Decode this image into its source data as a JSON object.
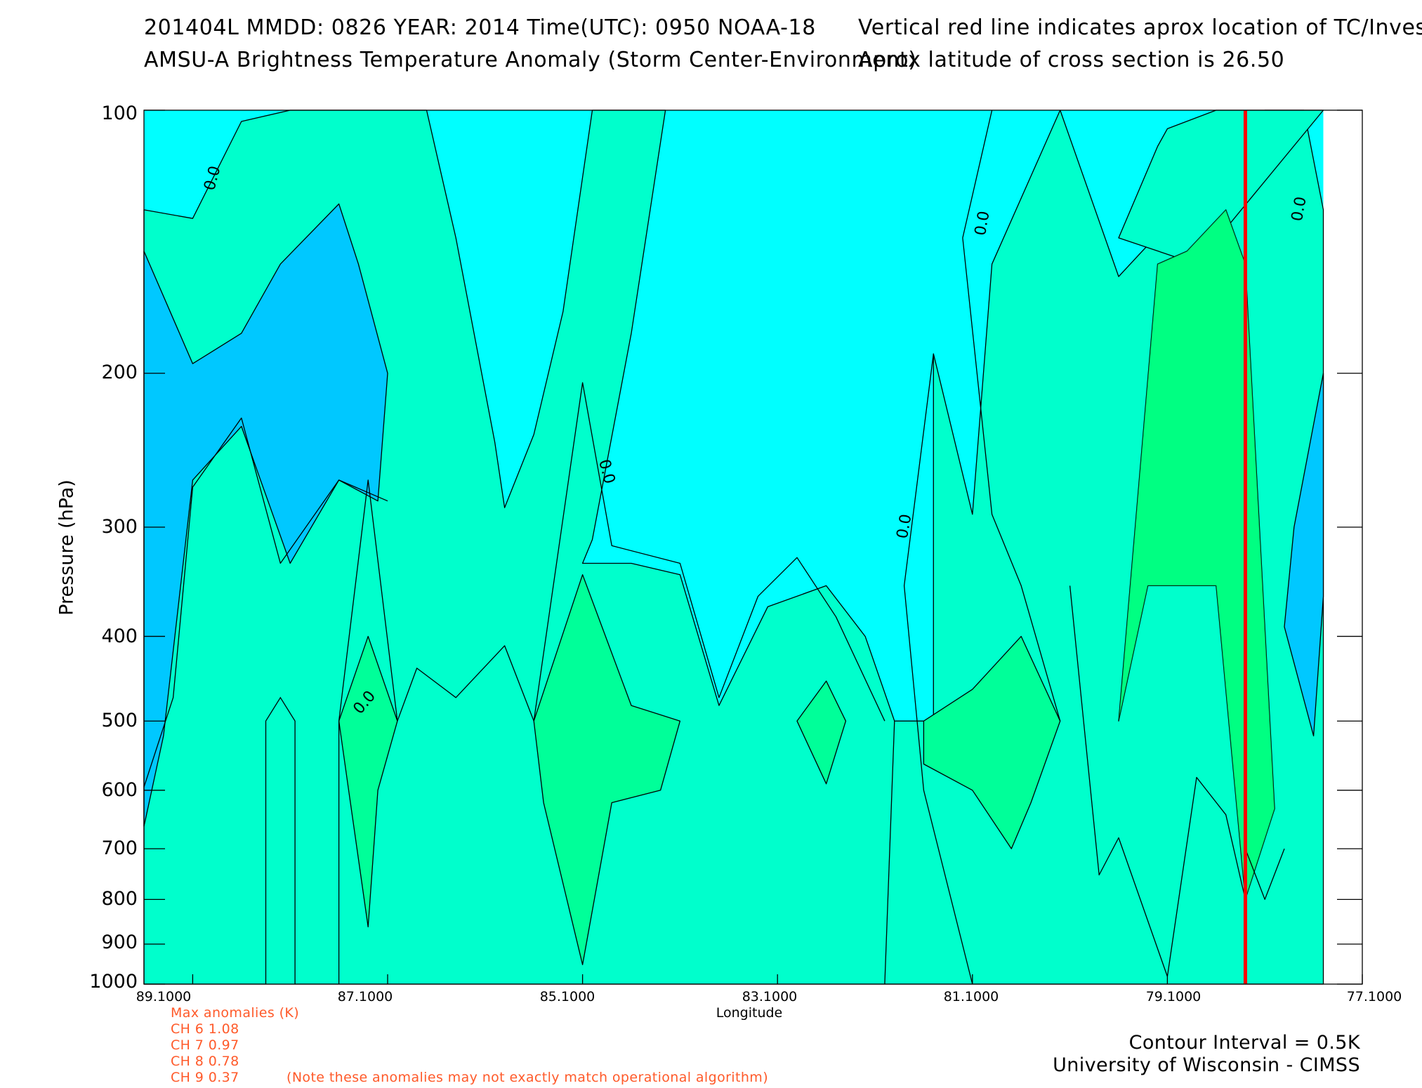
{
  "header": {
    "line1": "201404L  MMDD: 0826 YEAR: 2014 Time(UTC): 0950 NOAA-18",
    "line2": "AMSU-A Brightness Temperature Anomaly (Storm Center-Environment)",
    "note1": "Vertical red line indicates aprox location of TC/Invest",
    "note2": "Aprox latitude of cross section is 26.50"
  },
  "chart_data": {
    "type": "heatmap",
    "subtype": "filled contour cross-section",
    "title": "AMSU-A Brightness Temperature Anomaly (Storm Center-Environment)",
    "xlabel": "Longitude",
    "ylabel": "Pressure (hPa)",
    "x_tick_labels": [
      "89.1000",
      "87.1000",
      "85.1000",
      "83.1000",
      "81.1000",
      "79.1000",
      "77.1000"
    ],
    "x_ticks": [
      89.1,
      87.1,
      85.1,
      83.1,
      81.1,
      79.1,
      77.1
    ],
    "y_tick_labels": [
      "100",
      "200",
      "300",
      "400",
      "500",
      "600",
      "700",
      "800",
      "900",
      "1000"
    ],
    "y_ticks": [
      100,
      200,
      300,
      400,
      500,
      600,
      700,
      800,
      900,
      1000
    ],
    "xlim": [
      89.6,
      77.1
    ],
    "ylim": [
      1000,
      100
    ],
    "y_scale": "log",
    "contour_interval_K": 0.5,
    "contour_label": "0.0",
    "storm_longitude": 78.3,
    "data_extent_lon": [
      89.6,
      77.5
    ],
    "band_colors": {
      "-1.0": "#00c8ff",
      "-0.5": "#00ffff",
      "0.0": "#00ffcc",
      "0.5": "#00ff99",
      "1.0": "#00ff66"
    },
    "regions": [
      {
        "level": 0.0,
        "points": [
          [
            89.6,
            760
          ],
          [
            89.6,
            130
          ],
          [
            89.1,
            133
          ],
          [
            88.6,
            103
          ],
          [
            88.1,
            100
          ],
          [
            87.7,
            95
          ],
          [
            87.6,
            95
          ],
          [
            86.7,
            95
          ],
          [
            86.4,
            140
          ],
          [
            86.0,
            240
          ],
          [
            85.9,
            285
          ],
          [
            85.6,
            235
          ],
          [
            85.3,
            170
          ],
          [
            85.0,
            100
          ],
          [
            84.7,
            95
          ],
          [
            84.25,
            95
          ],
          [
            84.6,
            180
          ],
          [
            85.0,
            310
          ],
          [
            85.1,
            330
          ],
          [
            84.6,
            330
          ],
          [
            84.1,
            340
          ],
          [
            83.7,
            480
          ],
          [
            83.2,
            370
          ],
          [
            82.6,
            350
          ],
          [
            82.2,
            400
          ],
          [
            81.9,
            500
          ],
          [
            81.5,
            500
          ],
          [
            81.5,
            190
          ],
          [
            81.1,
            290
          ],
          [
            80.9,
            150
          ],
          [
            80.2,
            95
          ],
          [
            79.6,
            155
          ],
          [
            79.1,
            135
          ],
          [
            78.1,
            98
          ],
          [
            77.7,
            98
          ],
          [
            77.5,
            130
          ],
          [
            77.5,
            1000
          ],
          [
            89.6,
            1000
          ]
        ]
      },
      {
        "level": 0.0,
        "points": [
          [
            78.8,
            150
          ],
          [
            79.6,
            140
          ],
          [
            79.2,
            110
          ],
          [
            79.1,
            105
          ],
          [
            78.6,
            100
          ],
          [
            78.3,
            95
          ],
          [
            77.5,
            95
          ],
          [
            77.5,
            100
          ]
        ]
      },
      {
        "level": 0.5,
        "points": [
          [
            79.6,
            500
          ],
          [
            79.3,
            350
          ],
          [
            78.6,
            350
          ],
          [
            78.3,
            800
          ],
          [
            78.0,
            630
          ],
          [
            78.3,
            150
          ],
          [
            78.5,
            130
          ],
          [
            78.9,
            145
          ],
          [
            79.2,
            150
          ]
        ]
      },
      {
        "level": 0.5,
        "points": [
          [
            81.6,
            500
          ],
          [
            81.1,
            460
          ],
          [
            80.6,
            400
          ],
          [
            80.2,
            500
          ],
          [
            80.5,
            620
          ],
          [
            80.7,
            700
          ],
          [
            81.1,
            600
          ],
          [
            81.6,
            560
          ]
        ]
      },
      {
        "level": 0.5,
        "points": [
          [
            85.6,
            500
          ],
          [
            85.1,
            340
          ],
          [
            84.6,
            480
          ],
          [
            84.1,
            500
          ],
          [
            84.3,
            600
          ],
          [
            84.8,
            620
          ],
          [
            85.1,
            950
          ],
          [
            85.5,
            620
          ]
        ]
      },
      {
        "level": 0.5,
        "points": [
          [
            87.6,
            500
          ],
          [
            87.3,
            400
          ],
          [
            87.0,
            500
          ],
          [
            87.2,
            600
          ],
          [
            87.3,
            860
          ],
          [
            87.5,
            600
          ]
        ]
      },
      {
        "level": 0.5,
        "points": [
          [
            82.9,
            500
          ],
          [
            82.6,
            450
          ],
          [
            82.4,
            500
          ],
          [
            82.6,
            590
          ]
        ]
      },
      {
        "level": -1.0,
        "points": [
          [
            89.6,
            660
          ],
          [
            89.6,
            145
          ],
          [
            89.1,
            195
          ],
          [
            88.6,
            180
          ],
          [
            88.2,
            150
          ],
          [
            87.6,
            128
          ],
          [
            87.4,
            150
          ],
          [
            87.1,
            200
          ],
          [
            87.2,
            280
          ],
          [
            87.6,
            265
          ],
          [
            88.1,
            330
          ],
          [
            88.6,
            230
          ],
          [
            89.1,
            265
          ],
          [
            89.4,
            520
          ]
        ]
      },
      {
        "level": -1.0,
        "points": [
          [
            77.6,
            520
          ],
          [
            77.9,
            390
          ],
          [
            77.8,
            300
          ],
          [
            77.5,
            200
          ],
          [
            77.5,
            360
          ]
        ]
      }
    ],
    "contour_lines": [
      [
        [
          89.6,
          595
        ],
        [
          89.3,
          470
        ],
        [
          89.1,
          270
        ],
        [
          88.6,
          225
        ],
        [
          88.2,
          330
        ],
        [
          87.6,
          265
        ],
        [
          87.1,
          280
        ]
      ],
      [
        [
          87.6,
          500
        ],
        [
          87.3,
          265
        ],
        [
          87.0,
          500
        ],
        [
          86.8,
          435
        ],
        [
          86.4,
          470
        ],
        [
          85.9,
          410
        ],
        [
          85.6,
          500
        ]
      ],
      [
        [
          85.6,
          500
        ],
        [
          85.1,
          205
        ],
        [
          84.8,
          315
        ],
        [
          84.1,
          330
        ],
        [
          83.7,
          470
        ],
        [
          83.3,
          360
        ],
        [
          82.9,
          325
        ],
        [
          82.5,
          380
        ],
        [
          82.0,
          500
        ]
      ],
      [
        [
          82.0,
          1000
        ],
        [
          81.9,
          500
        ]
      ],
      [
        [
          81.1,
          1000
        ],
        [
          81.6,
          600
        ],
        [
          81.8,
          350
        ],
        [
          81.5,
          190
        ]
      ],
      [
        [
          80.2,
          500
        ],
        [
          80.6,
          350
        ],
        [
          80.9,
          290
        ],
        [
          81.2,
          140
        ],
        [
          80.9,
          100
        ]
      ],
      [
        [
          78.3,
          800
        ],
        [
          78.5,
          640
        ],
        [
          78.8,
          580
        ],
        [
          79.1,
          980
        ],
        [
          79.6,
          680
        ],
        [
          79.8,
          750
        ],
        [
          80.1,
          350
        ]
      ],
      [
        [
          78.3,
          700
        ],
        [
          78.1,
          800
        ],
        [
          77.9,
          700
        ]
      ]
    ],
    "max_anomalies": {
      "title": "Max anomalies (K)",
      "channels": [
        {
          "label": "CH 6  1.08",
          "channel": 6,
          "value": 1.08
        },
        {
          "label": "CH 7  0.97",
          "channel": 7,
          "value": 0.97
        },
        {
          "label": "CH 8  0.78",
          "channel": 8,
          "value": 0.78
        },
        {
          "label": "CH 9  0.37",
          "channel": 9,
          "value": 0.37
        }
      ],
      "note": "(Note these anomalies may not exactly match operational algorithm)"
    }
  },
  "footer": {
    "interval": "Contour Interval = 0.5K",
    "credit": "University of Wisconsin - CIMSS"
  }
}
